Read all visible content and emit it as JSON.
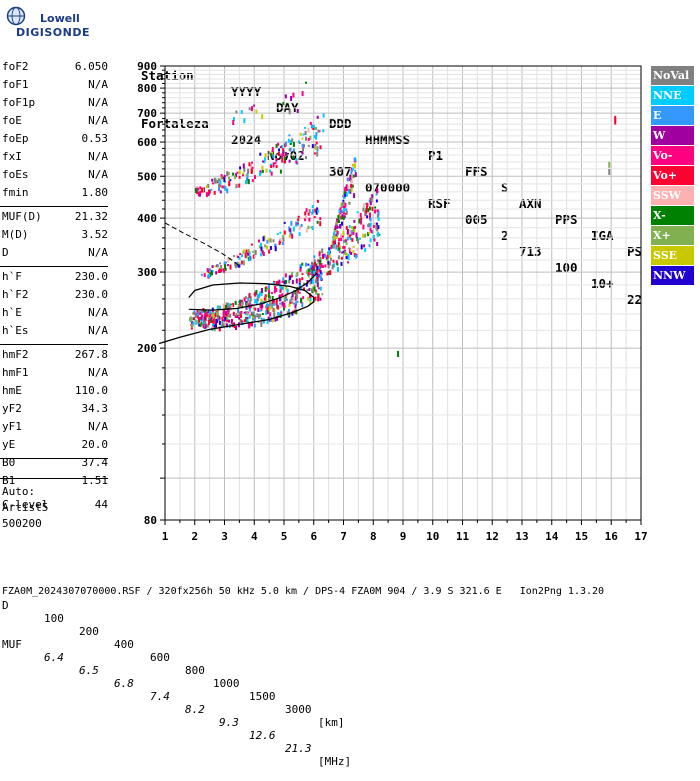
{
  "logo": {
    "line1": "Lowell",
    "line2": "DIGISONDE"
  },
  "header": {
    "labels": [
      "Station",
      "YYYY",
      "DAY",
      "DDD",
      "HHMMSS",
      "P1",
      "FFS",
      "S",
      "AXN",
      "PPS",
      "IGA",
      "PS"
    ],
    "values": [
      "Fortaleza",
      "2024",
      "Nov02",
      "307",
      "070000",
      "RSF",
      "005",
      "2",
      "713",
      "100",
      "10+",
      "22"
    ]
  },
  "params": [
    {
      "label": "foF2",
      "value": "6.050"
    },
    {
      "label": "foF1",
      "value": "N/A"
    },
    {
      "label": "foF1p",
      "value": "N/A"
    },
    {
      "label": "foE",
      "value": "N/A"
    },
    {
      "label": "foEp",
      "value": "0.53"
    },
    {
      "label": "fxI",
      "value": "N/A"
    },
    {
      "label": "foEs",
      "value": "N/A"
    },
    {
      "label": "fmin",
      "value": "1.80"
    },
    {
      "label": "MUF(D)",
      "value": "21.32"
    },
    {
      "label": "M(D)",
      "value": "3.52"
    },
    {
      "label": "D",
      "value": "N/A"
    },
    {
      "label": "h`F",
      "value": "230.0"
    },
    {
      "label": "h`F2",
      "value": "230.0"
    },
    {
      "label": "h`E",
      "value": "N/A"
    },
    {
      "label": "h`Es",
      "value": "N/A"
    },
    {
      "label": "hmF2",
      "value": "267.8"
    },
    {
      "label": "hmF1",
      "value": "N/A"
    },
    {
      "label": "hmE",
      "value": "110.0"
    },
    {
      "label": "yF2",
      "value": "34.3"
    },
    {
      "label": "yF1",
      "value": "N/A"
    },
    {
      "label": "yE",
      "value": "20.0"
    },
    {
      "label": "B0",
      "value": "37.4"
    },
    {
      "label": "B1",
      "value": "1.51"
    },
    {
      "label": "C-level",
      "value": "44"
    }
  ],
  "auto": {
    "line1": "Auto:",
    "line2": "Artist5",
    "line3": "500200"
  },
  "legend": [
    {
      "label": "NoVal",
      "color": "#808080"
    },
    {
      "label": "NNE",
      "color": "#00ccff"
    },
    {
      "label": "E",
      "color": "#3399ff"
    },
    {
      "label": "W",
      "color": "#a000a0"
    },
    {
      "label": "Vo-",
      "color": "#ff0080"
    },
    {
      "label": "Vo+",
      "color": "#ff0033"
    },
    {
      "label": "SSW",
      "color": "#ffb0b0"
    },
    {
      "label": "X-",
      "color": "#008000"
    },
    {
      "label": "X+",
      "color": "#80b050"
    },
    {
      "label": "SSE",
      "color": "#c8c800"
    },
    {
      "label": "NNW",
      "color": "#2000d0"
    }
  ],
  "muf_table": {
    "d_label": "D",
    "d_values": [
      "100",
      "200",
      "400",
      "600",
      "800",
      "1000",
      "1500",
      "3000"
    ],
    "d_unit": "[km]",
    "muf_label": "MUF",
    "muf_values": [
      "6.4",
      "6.5",
      "6.8",
      "7.4",
      "8.2",
      "9.3",
      "12.6",
      "21.3"
    ],
    "muf_unit": "[MHz]"
  },
  "footer": "FZA0M_2024307070000.RSF / 320fx256h 50 kHz 5.0 km / DPS-4 FZA0M 904 / 3.9 S 321.6 E   Ion2Png 1.3.20",
  "chart_data": {
    "type": "scatter",
    "title": "",
    "xlabel": "",
    "ylabel": "",
    "xlim": [
      1,
      17
    ],
    "ylim": [
      80,
      900
    ],
    "y_scale": "log",
    "xticks": [
      "1",
      "2",
      "3",
      "4",
      "5",
      "6",
      "7",
      "8",
      "9",
      "10",
      "11",
      "12",
      "13",
      "14",
      "15",
      "16",
      "17"
    ],
    "yticks": [
      "80",
      "200",
      "300",
      "400",
      "500",
      "600",
      "700",
      "800",
      "900"
    ],
    "grid": true,
    "profile": {
      "x": [
        0.8,
        1.5,
        2.5,
        3.5,
        4.5,
        5.3,
        5.8,
        6.0,
        6.0,
        5.7,
        5.2,
        4.4,
        3.5,
        2.6,
        2.0,
        1.8
      ],
      "y": [
        205,
        212,
        221,
        227,
        233,
        242,
        250,
        256,
        262,
        272,
        278,
        282,
        283,
        280,
        272,
        262
      ]
    },
    "fitted_trace": {
      "x": [
        1.8,
        2.6,
        3.4,
        4.2,
        4.9,
        5.4,
        5.8,
        6.1
      ],
      "y": [
        246,
        245,
        247,
        253,
        262,
        272,
        284,
        298
      ]
    },
    "extrapolated_profile": {
      "x": [
        1.0,
        1.6,
        2.3,
        2.9,
        3.3,
        3.5
      ],
      "y": [
        390,
        370,
        350,
        332,
        318,
        310
      ]
    },
    "traces": [
      {
        "name": "F2 echo",
        "x_start": 1.8,
        "x_end": 6.3,
        "h_start": 235,
        "h_end": 300,
        "h_curve": 2.2,
        "spread": 0.2,
        "bias": 0.04,
        "density": 520
      },
      {
        "name": "F2 spread",
        "x_start": 5.9,
        "x_end": 8.2,
        "h_start": 300,
        "h_end": 420,
        "h_curve": 1.3,
        "spread": 0.22,
        "bias": 0.0,
        "density": 200
      },
      {
        "name": "F2 upper",
        "x_start": 6.6,
        "x_end": 7.4,
        "h_start": 350,
        "h_end": 520,
        "h_curve": 1.0,
        "spread": 0.16,
        "bias": 0.0,
        "density": 110
      },
      {
        "name": "F2 scatter",
        "x_start": 2.2,
        "x_end": 6.2,
        "h_start": 300,
        "h_end": 420,
        "h_curve": 1.4,
        "spread": 0.1,
        "bias": 0.0,
        "density": 140
      },
      {
        "name": "2F2 echo",
        "x_start": 2.0,
        "x_end": 6.3,
        "h_start": 470,
        "h_end": 640,
        "h_curve": 1.5,
        "spread": 0.15,
        "bias": 0.0,
        "density": 180
      },
      {
        "name": "3F2 echo",
        "x_start": 3.2,
        "x_end": 5.8,
        "h_start": 690,
        "h_end": 780,
        "h_curve": 1.0,
        "spread": 0.12,
        "bias": 0.0,
        "density": 18
      }
    ],
    "isolated_points": [
      {
        "x": 8.8,
        "y": 197
      },
      {
        "x": 15.9,
        "y": 540
      },
      {
        "x": 15.9,
        "y": 520
      },
      {
        "x": 16.1,
        "y": 690
      },
      {
        "x": 16.1,
        "y": 680
      }
    ]
  }
}
